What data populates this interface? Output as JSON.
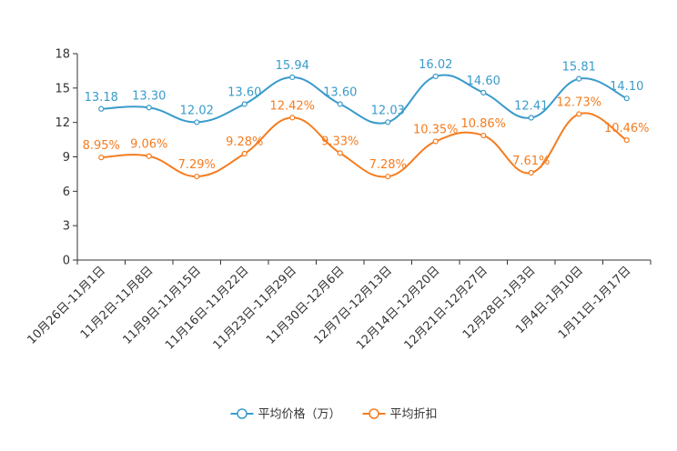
{
  "chart_data": {
    "type": "line",
    "title": "",
    "xlabel": "",
    "ylabel": "",
    "ylim": [
      0,
      18
    ],
    "yticks": [
      0,
      3,
      6,
      9,
      12,
      15,
      18
    ],
    "grid": false,
    "legend_position": "bottom-center",
    "categories": [
      "10月26日-11月1日",
      "11月2日-11月8日",
      "11月9日-11月15日",
      "11月16日-11月22日",
      "11月23日-11月29日",
      "11月30日-12月6日",
      "12月7日-12月13日",
      "12月14日-12月20日",
      "12月21日-12月27日",
      "12月28日-1月3日",
      "1月4日-1月10日",
      "1月11日-1月17日"
    ],
    "series": [
      {
        "name": "平均价格（万）",
        "color": "#3a9bcb",
        "values": [
          13.18,
          13.3,
          12.02,
          13.6,
          15.94,
          13.6,
          12.03,
          16.02,
          14.6,
          12.41,
          15.81,
          14.1
        ],
        "labels": [
          "13.18",
          "13.30",
          "12.02",
          "13.60",
          "15.94",
          "13.60",
          "12.03",
          "16.02",
          "14.60",
          "12.41",
          "15.81",
          "14.10"
        ]
      },
      {
        "name": "平均折扣",
        "color": "#f57c1f",
        "values": [
          8.95,
          9.06,
          7.29,
          9.28,
          12.42,
          9.33,
          7.28,
          10.35,
          10.86,
          7.61,
          12.73,
          10.46
        ],
        "labels": [
          "8.95%",
          "9.06%",
          "7.29%",
          "9.28%",
          "12.42%",
          "9.33%",
          "7.28%",
          "10.35%",
          "10.86%",
          "7.61%",
          "12.73%",
          "10.46%"
        ]
      }
    ]
  }
}
